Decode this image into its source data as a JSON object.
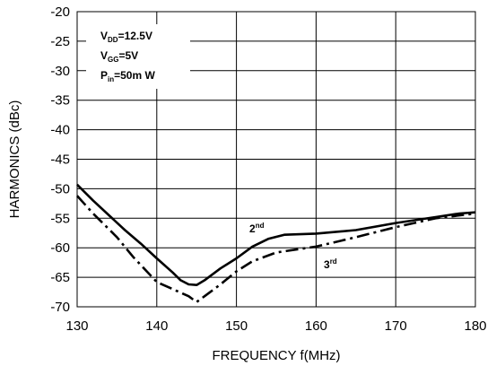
{
  "chart_data": {
    "type": "line",
    "xlabel": "FREQUENCY f(MHz)",
    "ylabel": "HARMONICS (dBc)",
    "xlim": [
      130,
      180
    ],
    "ylim": [
      -70,
      -20
    ],
    "x_ticks": [
      "130",
      "140",
      "150",
      "160",
      "170",
      "180"
    ],
    "y_ticks": [
      "-20",
      "-25",
      "-30",
      "-35",
      "-40",
      "-45",
      "-50",
      "-55",
      "-60",
      "-65",
      "-70"
    ],
    "grid": true,
    "conditions": [
      {
        "main": "V",
        "sub": "DD",
        "rest": "=12.5V"
      },
      {
        "main": "V",
        "sub": "GG",
        "rest": "=5V"
      },
      {
        "main": "P",
        "sub": "in",
        "rest": "=50m W"
      }
    ],
    "series": [
      {
        "label_main": "2",
        "label_sup": "nd",
        "line_style": "solid",
        "x": [
          130,
          132,
          134,
          136,
          138,
          140,
          142,
          143,
          144,
          145,
          146,
          148,
          150,
          152,
          154,
          156,
          158,
          160,
          165,
          170,
          175,
          178,
          180
        ],
        "y": [
          -49.3,
          -52,
          -54.5,
          -57,
          -59.3,
          -61.8,
          -64.2,
          -65.5,
          -66.2,
          -66.3,
          -65.5,
          -63.5,
          -61.8,
          -59.8,
          -58.5,
          -57.8,
          -57.7,
          -57.6,
          -57,
          -55.8,
          -54.8,
          -54.2,
          -54
        ]
      },
      {
        "label_main": "3",
        "label_sup": "rd",
        "line_style": "dashdot",
        "x": [
          130,
          132,
          135,
          137,
          140,
          142,
          144,
          145,
          146,
          148,
          150,
          152,
          155,
          158,
          160,
          165,
          170,
          175,
          180
        ],
        "y": [
          -51.2,
          -54.2,
          -58.2,
          -61.5,
          -65.8,
          -67,
          -68.2,
          -69.2,
          -68.2,
          -66.2,
          -64,
          -62.3,
          -60.8,
          -60.2,
          -59.8,
          -58.2,
          -56.5,
          -55,
          -54.2
        ]
      }
    ]
  }
}
